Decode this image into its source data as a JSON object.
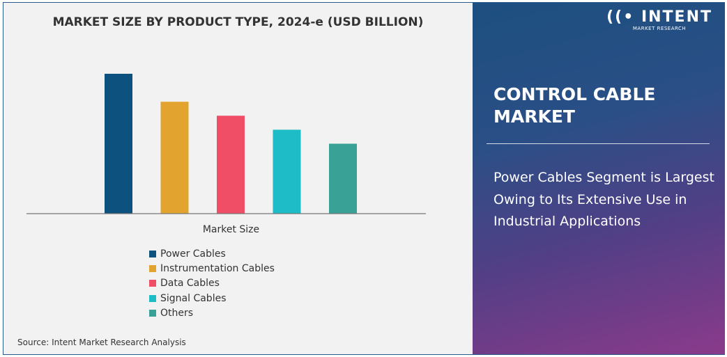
{
  "chart_data": {
    "type": "bar",
    "title": "MARKET SIZE BY PRODUCT TYPE, 2024-e (USD BILLION)",
    "xlabel": "Market Size",
    "ylabel": "",
    "categories": [
      "Power Cables",
      "Instrumentation Cables",
      "Data Cables",
      "Signal Cables",
      "Others"
    ],
    "values": [
      100,
      80,
      70,
      60,
      50
    ],
    "ylim": [
      0,
      100
    ],
    "colors": [
      "#0d527f",
      "#e2a42e",
      "#f04e66",
      "#1dbcc6",
      "#3aa197"
    ],
    "legend": "bottom",
    "grid": false
  },
  "source": "Source: Intent Market Research Analysis",
  "panel": {
    "logo_text": "INTENT",
    "logo_sub": "MARKET RESEARCH",
    "title": "CONTROL CABLE MARKET",
    "description": "Power Cables Segment is Largest Owing to Its Extensive Use in Industrial Applications"
  }
}
